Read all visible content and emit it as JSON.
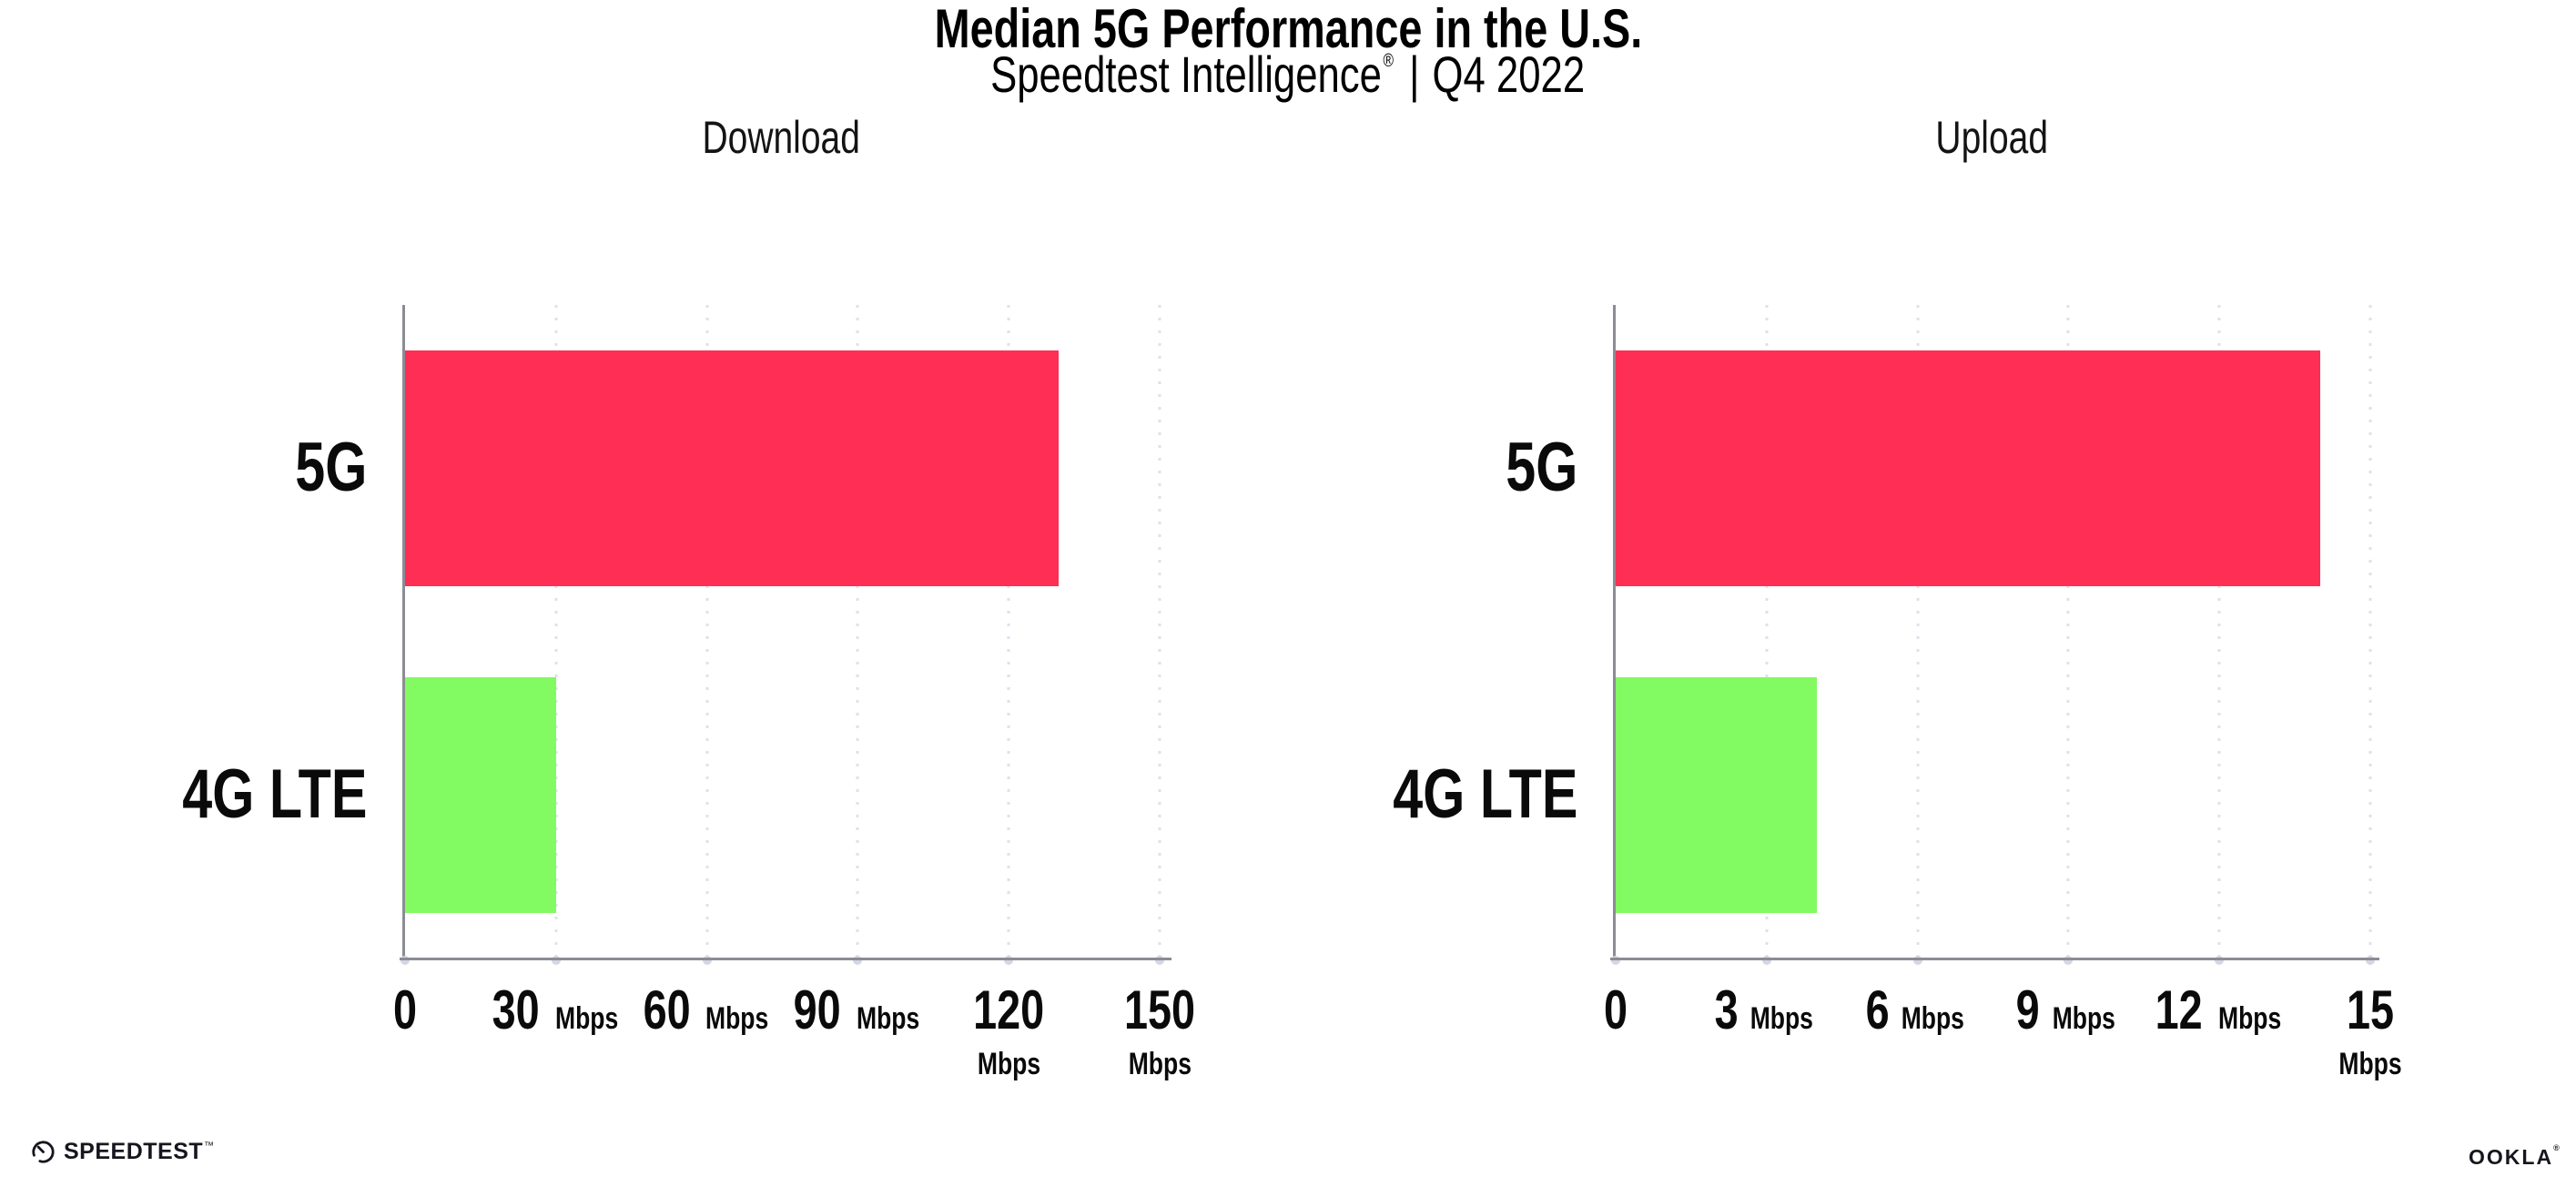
{
  "header": {
    "title": "Median 5G Performance in the U.S.",
    "subtitle": {
      "brand": "Speedtest Intelligence",
      "registered": "®",
      "divider": "|",
      "period": "Q4 2022"
    }
  },
  "chart_data": [
    {
      "type": "bar",
      "orientation": "horizontal",
      "title": "Download",
      "categories": [
        "5G",
        "4G LTE"
      ],
      "values": [
        130,
        30
      ],
      "unit": "Mbps",
      "xlabel": "",
      "ylabel": "",
      "xlim": [
        0,
        150
      ],
      "xticks": [
        0,
        30,
        60,
        90,
        120,
        150
      ],
      "grid": "dotted-vertical",
      "legend": "none",
      "bar_colors": [
        "#ff2e55",
        "#82fa62"
      ]
    },
    {
      "type": "bar",
      "orientation": "horizontal",
      "title": "Upload",
      "categories": [
        "5G",
        "4G LTE"
      ],
      "values": [
        14,
        4
      ],
      "unit": "Mbps",
      "xlabel": "",
      "ylabel": "",
      "xlim": [
        0,
        15
      ],
      "xticks": [
        0,
        3,
        6,
        9,
        12,
        15
      ],
      "grid": "dotted-vertical",
      "legend": "none",
      "bar_colors": [
        "#ff2e55",
        "#82fa62"
      ]
    }
  ],
  "footer": {
    "speedtest": {
      "label": "SPEEDTEST",
      "trademark": "™"
    },
    "ookla": {
      "label": "OOKLA",
      "registered": "®"
    }
  },
  "colors": {
    "bar_5g": "#ff2e55",
    "bar_4g_lte": "#82fa62",
    "axis": "#8b8c94",
    "gridline": "#dfe1ea",
    "axis_dot": "#d3d6e3",
    "text": "#0a0a0a",
    "background": "#ffffff"
  }
}
